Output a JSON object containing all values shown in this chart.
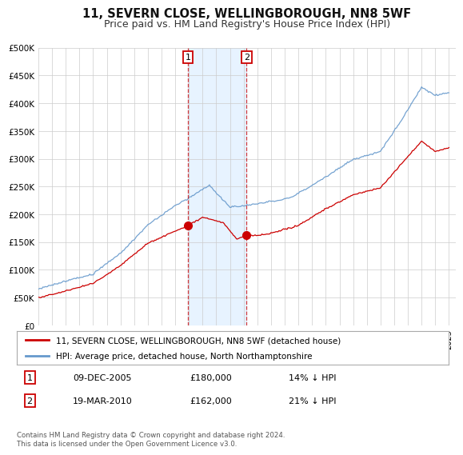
{
  "title": "11, SEVERN CLOSE, WELLINGBOROUGH, NN8 5WF",
  "subtitle": "Price paid vs. HM Land Registry's House Price Index (HPI)",
  "title_fontsize": 10.5,
  "subtitle_fontsize": 9,
  "ylim": [
    0,
    500000
  ],
  "yticks": [
    0,
    50000,
    100000,
    150000,
    200000,
    250000,
    300000,
    350000,
    400000,
    450000,
    500000
  ],
  "ytick_labels": [
    "£0",
    "£50K",
    "£100K",
    "£150K",
    "£200K",
    "£250K",
    "£300K",
    "£350K",
    "£400K",
    "£450K",
    "£500K"
  ],
  "xlim_start": 1995.0,
  "xlim_end": 2025.5,
  "transaction1": {
    "year": 2005.94,
    "price": 180000,
    "label": "1",
    "date": "09-DEC-2005",
    "pct": "14% ↓ HPI"
  },
  "transaction2": {
    "year": 2010.22,
    "price": 162000,
    "label": "2",
    "date": "19-MAR-2010",
    "pct": "21% ↓ HPI"
  },
  "shade_color": "#ddeeff",
  "shade_alpha": 0.7,
  "line_red": "#cc0000",
  "line_blue": "#6699cc",
  "legend_label_red": "11, SEVERN CLOSE, WELLINGBOROUGH, NN8 5WF (detached house)",
  "legend_label_blue": "HPI: Average price, detached house, North Northamptonshire",
  "footer": "Contains HM Land Registry data © Crown copyright and database right 2024.\nThis data is licensed under the Open Government Licence v3.0.",
  "bg_color": "#ffffff",
  "grid_color": "#cccccc"
}
